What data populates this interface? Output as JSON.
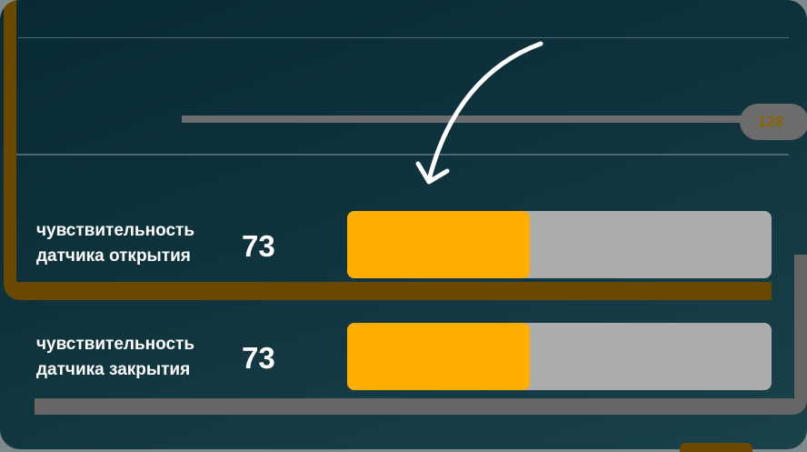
{
  "top_slider": {
    "value_label": "128"
  },
  "rows": [
    {
      "label_line1": "чувствительность",
      "label_line2": "датчика открытия",
      "value": "73",
      "fill_fraction": 0.43
    },
    {
      "label_line1": "чувствительность",
      "label_line2": "датчика закрытия",
      "value": "73",
      "fill_fraction": 0.43
    }
  ],
  "colors": {
    "accent": "#ffae00",
    "track": "#acacac",
    "background": "#0f333d",
    "highlight_bracket": "#6a4800",
    "secondary_bracket": "#666666"
  },
  "icons": {
    "pointer_arrow": "curved-arrow-icon"
  }
}
